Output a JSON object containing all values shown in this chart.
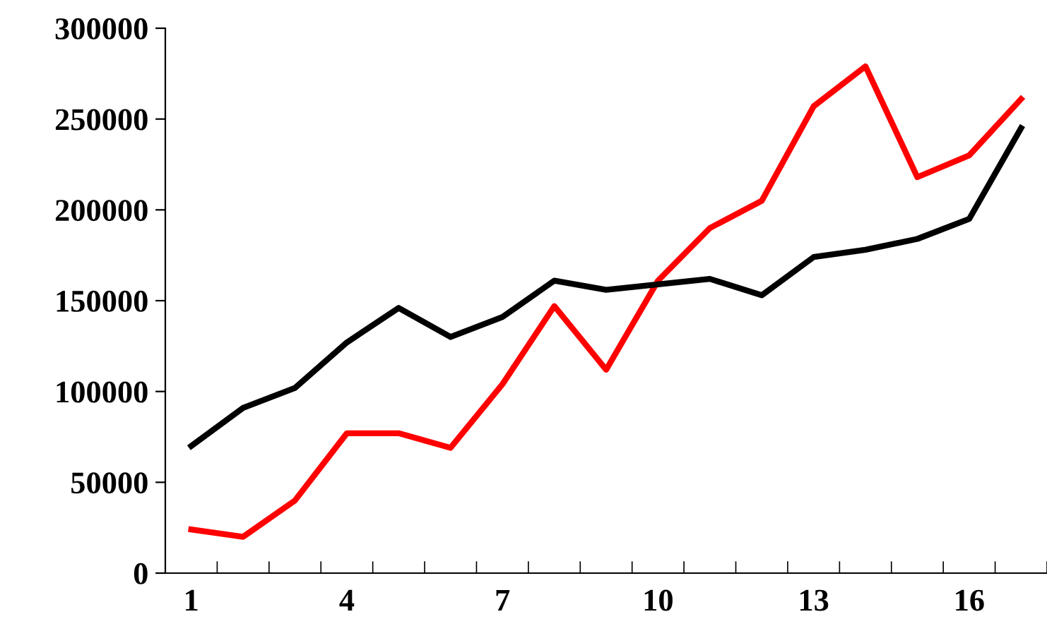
{
  "chart_data": {
    "type": "line",
    "categories": [
      "1",
      null,
      null,
      "4",
      null,
      null,
      "7",
      null,
      null,
      "10",
      null,
      null,
      "13",
      null,
      null,
      "16",
      null
    ],
    "series": [
      {
        "color": "#ff0000",
        "values": [
          24000,
          20000,
          40000,
          77000,
          77000,
          69000,
          104000,
          147000,
          112000,
          161000,
          190000,
          205000,
          257000,
          279000,
          218000,
          230000,
          261000
        ]
      },
      {
        "color": "#000000",
        "values": [
          70000,
          91000,
          102000,
          127000,
          146000,
          130000,
          141000,
          161000,
          156000,
          159000,
          162000,
          153000,
          174000,
          178000,
          184000,
          195000,
          245000
        ]
      }
    ],
    "ylim": [
      0,
      300000
    ],
    "yticks": [
      0,
      50000,
      100000,
      150000,
      200000,
      250000,
      300000
    ],
    "grid": false,
    "legend": false,
    "marker": "none",
    "line_style": "solid"
  }
}
